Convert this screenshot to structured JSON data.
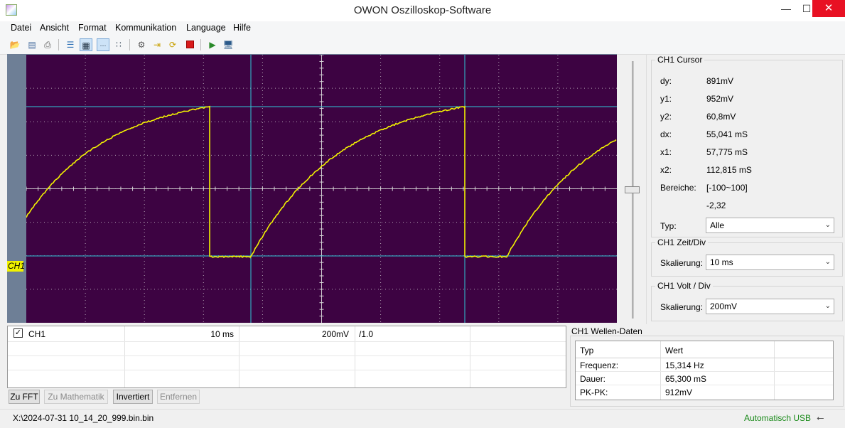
{
  "window": {
    "title": "OWON Oszilloskop-Software"
  },
  "menu": [
    "Datei",
    "Ansicht",
    "Format",
    "Kommunikation",
    "Language",
    "Hilfe"
  ],
  "toolbar": {
    "icons": [
      "folder-open-icon",
      "print-preview-icon",
      "print-icon",
      "list-icon",
      "grid-icon",
      "dots-icon",
      "points-icon",
      "settings-cog-icon",
      "export-icon",
      "refresh-icon",
      "stop-icon",
      "run-icon",
      "monitor-icon"
    ]
  },
  "scope": {
    "channel_marker": "CH1",
    "colors": {
      "background": "#3d0342",
      "trace": "#f2f200",
      "cursor": "#2ec8d8",
      "grid": "#d8d8d8"
    }
  },
  "cursor_panel": {
    "title": "CH1 Cursor",
    "rows": [
      {
        "label": "dy:",
        "value": "891mV"
      },
      {
        "label": "y1:",
        "value": "952mV"
      },
      {
        "label": "y2:",
        "value": "60,8mV"
      },
      {
        "label": "dx:",
        "value": "55,041 mS"
      },
      {
        "label": "x1:",
        "value": "57,775 mS"
      },
      {
        "label": "x2:",
        "value": "112,815 mS"
      },
      {
        "label": "Bereiche:",
        "value": "[-100~100]"
      },
      {
        "label": "",
        "value": "-2,32"
      }
    ],
    "type_label": "Typ:",
    "type_value": "Alle"
  },
  "timebase_panel": {
    "title": "CH1 Zeit/Div",
    "label": "Skalierung:",
    "value": "10 ms"
  },
  "volt_panel": {
    "title": "CH1 Volt / Div",
    "label": "Skalierung:",
    "value": "200mV"
  },
  "channel_table": {
    "row": {
      "checked": true,
      "name": "CH1",
      "time_div": "10 ms",
      "volt_div": "200mV",
      "probe": "/1.0"
    }
  },
  "bottom_buttons": [
    {
      "label": "Zu FFT",
      "enabled": true
    },
    {
      "label": "Zu Mathematik",
      "enabled": false
    },
    {
      "label": "Invertiert",
      "enabled": true
    },
    {
      "label": "Entfernen",
      "enabled": false
    }
  ],
  "wave_panel": {
    "title": "CH1 Wellen-Daten",
    "header": {
      "col1": "Typ",
      "col2": "Wert"
    },
    "rows": [
      {
        "label": "Frequenz:",
        "value": "15,314 Hz"
      },
      {
        "label": "Dauer:",
        "value": "65,300 mS"
      },
      {
        "label": "PK-PK:",
        "value": "912mV"
      }
    ]
  },
  "status": {
    "path": "X:\\2024-07-31 10_14_20_999.bin.bin",
    "connection": "Automatisch USB"
  }
}
